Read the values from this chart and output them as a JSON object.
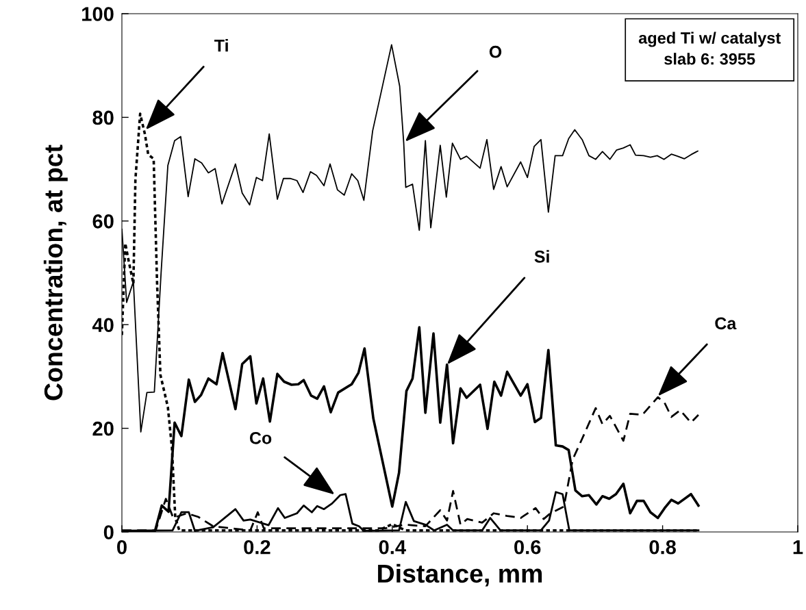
{
  "chart_data": {
    "type": "line",
    "xlabel": "Distance, mm",
    "ylabel": "Concentration, at pct",
    "xlim": [
      0,
      1
    ],
    "xticks": [
      0,
      0.2,
      0.4,
      0.6,
      0.8,
      1
    ],
    "ylim": [
      0,
      100
    ],
    "yticks": [
      0,
      20,
      40,
      60,
      80,
      100
    ],
    "grid": false,
    "legend": false,
    "marker": "none",
    "series": [
      {
        "color": "#000000",
        "line_style": "dotted",
        "x": [
          0,
          0.005,
          0.01,
          0.017,
          0.02,
          0.027,
          0.034,
          0.039,
          0.047,
          0.052,
          0.057,
          0.068,
          0.074,
          0.079,
          0.085,
          0.38,
          0.4,
          0.42,
          0.853
        ],
        "values": [
          38,
          55.7,
          52.3,
          47.9,
          68,
          80.7,
          76.8,
          72.8,
          72,
          48.3,
          30.3,
          24.1,
          16.3,
          2.7,
          0.3,
          0.3,
          1.5,
          0.3,
          0.3
        ]
      },
      {
        "color": "#000000",
        "line_style": "solid",
        "x": [
          0,
          0.007,
          0.017,
          0.028,
          0.037,
          0.048,
          0.058,
          0.068,
          0.078,
          0.087,
          0.098,
          0.108,
          0.118,
          0.128,
          0.138,
          0.148,
          0.168,
          0.178,
          0.189,
          0.199,
          0.208,
          0.218,
          0.23,
          0.239,
          0.249,
          0.259,
          0.268,
          0.279,
          0.288,
          0.299,
          0.308,
          0.319,
          0.329,
          0.34,
          0.349,
          0.358,
          0.371,
          0.399,
          0.411,
          0.417,
          0.42,
          0.43,
          0.44,
          0.449,
          0.457,
          0.471,
          0.48,
          0.489,
          0.501,
          0.51,
          0.53,
          0.54,
          0.55,
          0.561,
          0.57,
          0.59,
          0.6,
          0.61,
          0.62,
          0.631,
          0.641,
          0.652,
          0.661,
          0.67,
          0.681,
          0.691,
          0.701,
          0.711,
          0.722,
          0.732,
          0.742,
          0.752,
          0.76,
          0.772,
          0.782,
          0.792,
          0.802,
          0.813,
          0.822,
          0.832,
          0.842,
          0.852
        ],
        "values": [
          58.4,
          44.3,
          48.3,
          19.3,
          26.9,
          27,
          50,
          70.7,
          75.5,
          76.3,
          64.7,
          72,
          71.2,
          69.3,
          70.1,
          63.3,
          71,
          65.4,
          63.1,
          68.4,
          67.8,
          76.8,
          64.2,
          68.2,
          68.2,
          67.8,
          65.5,
          69.5,
          68.8,
          66.8,
          71,
          66,
          65,
          69.1,
          67.8,
          64,
          77.4,
          94,
          86,
          75,
          66.5,
          67.1,
          58.2,
          75.5,
          58.7,
          74.6,
          64.6,
          75,
          71.9,
          72.5,
          70.2,
          75.7,
          66.1,
          70.5,
          66.6,
          71.4,
          68.4,
          74.4,
          75.7,
          61.7,
          72.6,
          72.6,
          75.9,
          77.6,
          75.7,
          72.6,
          71.9,
          73.4,
          71.9,
          73.7,
          74.1,
          74.7,
          72.7,
          72.6,
          72.3,
          72.6,
          71.9,
          72.9,
          72.5,
          72,
          72.8,
          73.5
        ]
      },
      {
        "color": "#000000",
        "line_style": "solid",
        "x": [
          0,
          0.049,
          0.059,
          0.069,
          0.078,
          0.088,
          0.099,
          0.108,
          0.117,
          0.128,
          0.14,
          0.149,
          0.168,
          0.178,
          0.19,
          0.199,
          0.209,
          0.219,
          0.23,
          0.24,
          0.251,
          0.261,
          0.269,
          0.28,
          0.289,
          0.299,
          0.309,
          0.32,
          0.34,
          0.35,
          0.359,
          0.372,
          0.4,
          0.41,
          0.421,
          0.43,
          0.44,
          0.449,
          0.461,
          0.471,
          0.481,
          0.49,
          0.501,
          0.51,
          0.53,
          0.541,
          0.551,
          0.561,
          0.57,
          0.59,
          0.6,
          0.611,
          0.62,
          0.631,
          0.642,
          0.652,
          0.661,
          0.671,
          0.681,
          0.691,
          0.702,
          0.711,
          0.721,
          0.731,
          0.742,
          0.752,
          0.762,
          0.772,
          0.782,
          0.793,
          0.803,
          0.813,
          0.823,
          0.842,
          0.853
        ],
        "values": [
          0.2,
          0.2,
          5.1,
          3.9,
          21.1,
          18.5,
          29.4,
          25.1,
          26.4,
          29.6,
          28.5,
          34.5,
          23.7,
          32.4,
          33.9,
          24.8,
          29.6,
          21.3,
          30.5,
          29,
          28.4,
          28.5,
          29.3,
          26.3,
          25.7,
          28.1,
          23.1,
          26.9,
          28.5,
          30.7,
          35.4,
          21.9,
          4.9,
          11.4,
          27.2,
          29.6,
          39.5,
          23,
          38.3,
          21.1,
          32.3,
          17.1,
          27.7,
          25.9,
          28.4,
          19.9,
          29,
          26.3,
          30.9,
          26.3,
          28.5,
          21.2,
          22,
          35.1,
          16.7,
          16.5,
          15.8,
          8,
          6.9,
          7.1,
          5.3,
          6.9,
          6.4,
          7.3,
          9.3,
          3.6,
          6,
          6,
          3.8,
          2.7,
          4.6,
          6.2,
          5.5,
          7.3,
          5.1
        ]
      },
      {
        "color": "#000000",
        "line_style": "dashed",
        "x": [
          0,
          0.05,
          0.065,
          0.076,
          0.096,
          0.113,
          0.135,
          0.19,
          0.201,
          0.21,
          0.39,
          0.419,
          0.449,
          0.471,
          0.481,
          0.49,
          0.501,
          0.511,
          0.533,
          0.55,
          0.57,
          0.59,
          0.612,
          0.624,
          0.634,
          0.654,
          0.667,
          0.681,
          0.701,
          0.711,
          0.722,
          0.742,
          0.752,
          0.77,
          0.793,
          0.803,
          0.813,
          0.826,
          0.842,
          0.853
        ],
        "values": [
          0.3,
          0.3,
          6.4,
          2.7,
          3.6,
          2.9,
          1.1,
          0.3,
          3.8,
          0.7,
          0.7,
          1.4,
          1.1,
          4.2,
          2.2,
          7.9,
          1.4,
          2.5,
          1.8,
          3.6,
          3.1,
          2.7,
          4.6,
          2.5,
          3.6,
          4.9,
          14,
          18,
          23.9,
          20.8,
          22.4,
          17.6,
          22.8,
          22.6,
          26,
          24.9,
          22.2,
          23.5,
          21.1,
          22.6
        ]
      },
      {
        "color": "#000000",
        "line_style": "solid",
        "x": [
          0,
          0.075,
          0.088,
          0.099,
          0.108,
          0.135,
          0.168,
          0.18,
          0.19,
          0.217,
          0.231,
          0.241,
          0.259,
          0.269,
          0.281,
          0.289,
          0.299,
          0.311,
          0.323,
          0.331,
          0.341,
          0.351,
          0.358,
          0.41,
          0.42,
          0.432,
          0.449,
          0.462,
          0.481,
          0.49,
          0.533,
          0.545,
          0.56,
          0.62,
          0.632,
          0.642,
          0.652,
          0.662,
          0.853
        ],
        "values": [
          0.2,
          0.3,
          3.8,
          3.8,
          0.2,
          0.9,
          4.4,
          2.2,
          2.4,
          1.3,
          4.6,
          2.7,
          3.6,
          5.1,
          3.8,
          5,
          4.4,
          5.5,
          7.1,
          7.3,
          1.6,
          1.1,
          0.2,
          0.3,
          5.8,
          2.1,
          1.4,
          0.3,
          1.4,
          0.3,
          0.3,
          2.7,
          0.3,
          0.3,
          2.2,
          7.7,
          7.3,
          0.3,
          0.3
        ]
      }
    ],
    "annotations": [
      {
        "text": "Ti",
        "x": 0.035,
        "y": 77.6
      },
      {
        "text": "O",
        "x": 0.419,
        "y": 75.3
      },
      {
        "text": "Si",
        "x": 0.481,
        "y": 32.3
      },
      {
        "text": "Ca",
        "x": 0.793,
        "y": 26.2
      },
      {
        "text": "Co",
        "x": 0.315,
        "y": 7.2
      },
      "aged Ti w/ catalyst\nslab 6: 3955"
    ]
  }
}
